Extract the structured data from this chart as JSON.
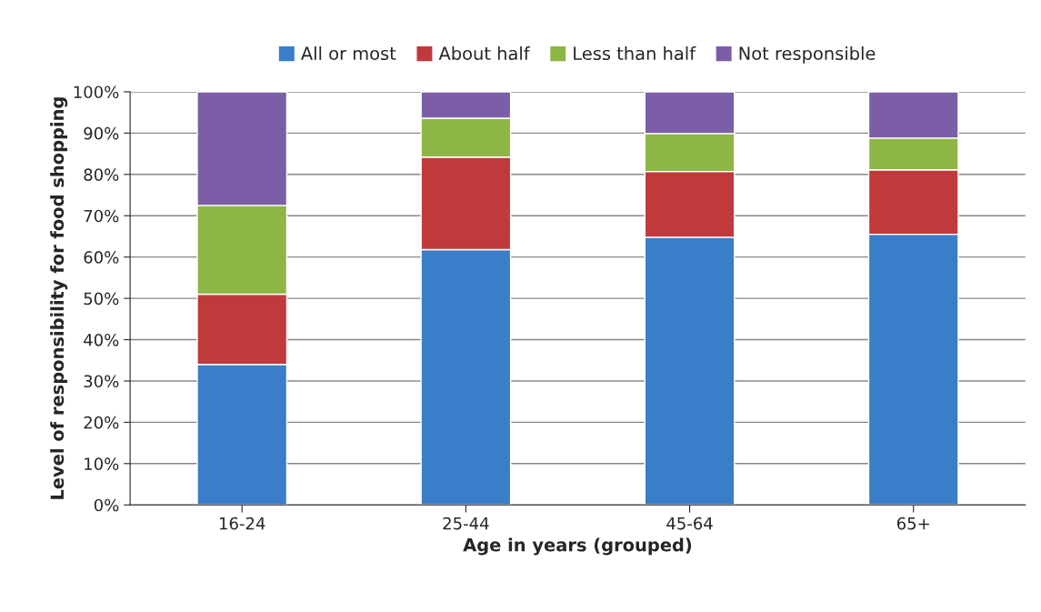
{
  "chart_data": {
    "type": "bar",
    "stacked": true,
    "xlabel": "Age in years (grouped)",
    "ylabel": "Level of responsibility for food shopping",
    "categories": [
      "16-24",
      "25-44",
      "45-64",
      "65+"
    ],
    "series": [
      {
        "name": "All or most",
        "color": "#3a7dc9",
        "values": [
          34,
          61.8,
          64.8,
          65.5
        ]
      },
      {
        "name": "About half",
        "color": "#c0393b",
        "values": [
          17,
          22.4,
          15.9,
          15.6
        ]
      },
      {
        "name": "Less than half",
        "color": "#8db644",
        "values": [
          21.5,
          9.4,
          9.2,
          7.7
        ]
      },
      {
        "name": "Not responsible",
        "color": "#7b5ea7",
        "values": [
          27.5,
          6.4,
          10.1,
          11.2
        ]
      }
    ],
    "ylim": [
      0,
      100
    ],
    "yticks": [
      {
        "value": 0,
        "label": "0%"
      },
      {
        "value": 10,
        "label": "10%"
      },
      {
        "value": 20,
        "label": "20%"
      },
      {
        "value": 30,
        "label": "30%"
      },
      {
        "value": 40,
        "label": "40%"
      },
      {
        "value": 50,
        "label": "50%"
      },
      {
        "value": 60,
        "label": "60%"
      },
      {
        "value": 70,
        "label": "70%"
      },
      {
        "value": 80,
        "label": "80%"
      },
      {
        "value": 90,
        "label": "90%"
      },
      {
        "value": 100,
        "label": "100%"
      }
    ],
    "grid": "y",
    "legend": "top"
  }
}
